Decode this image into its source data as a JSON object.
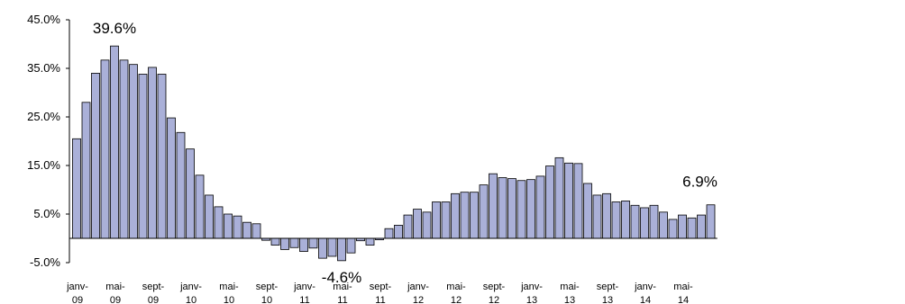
{
  "chart_data": {
    "type": "bar",
    "title": "",
    "xlabel": "",
    "ylabel": "",
    "ylim": [
      -5.0,
      45.0
    ],
    "y_ticks": [
      "45.0%",
      "35.0%",
      "25.0%",
      "15.0%",
      "5.0%",
      "-5.0%"
    ],
    "y_tick_values": [
      45,
      35,
      25,
      15,
      5,
      -5
    ],
    "bar_color": "#aab0d8",
    "bar_edge_color": "#000000",
    "grid": false,
    "x_tick_labels": [
      {
        "index": 0,
        "line1": "janv-",
        "line2": "09"
      },
      {
        "index": 4,
        "line1": "mai-",
        "line2": "09"
      },
      {
        "index": 8,
        "line1": "sept-",
        "line2": "09"
      },
      {
        "index": 12,
        "line1": "janv-",
        "line2": "10"
      },
      {
        "index": 16,
        "line1": "mai-",
        "line2": "10"
      },
      {
        "index": 20,
        "line1": "sept-",
        "line2": "10"
      },
      {
        "index": 24,
        "line1": "janv-",
        "line2": "11"
      },
      {
        "index": 28,
        "line1": "mai-",
        "line2": "11"
      },
      {
        "index": 32,
        "line1": "sept-",
        "line2": "11"
      },
      {
        "index": 36,
        "line1": "janv-",
        "line2": "12"
      },
      {
        "index": 40,
        "line1": "mai-",
        "line2": "12"
      },
      {
        "index": 44,
        "line1": "sept-",
        "line2": "12"
      },
      {
        "index": 48,
        "line1": "janv-",
        "line2": "13"
      },
      {
        "index": 52,
        "line1": "mai-",
        "line2": "13"
      },
      {
        "index": 56,
        "line1": "sept-",
        "line2": "13"
      },
      {
        "index": 60,
        "line1": "janv-",
        "line2": "14"
      },
      {
        "index": 64,
        "line1": "mai-",
        "line2": "14"
      }
    ],
    "values": [
      20.5,
      28.0,
      34.0,
      36.7,
      39.6,
      36.7,
      35.8,
      33.8,
      35.2,
      33.8,
      24.8,
      21.8,
      18.4,
      13.0,
      8.9,
      6.5,
      5.0,
      4.6,
      3.3,
      3.0,
      -0.4,
      -1.4,
      -2.3,
      -1.9,
      -2.7,
      -2.0,
      -4.1,
      -3.7,
      -4.6,
      -3.0,
      -0.5,
      -1.4,
      -0.3,
      2.0,
      2.7,
      4.8,
      6.0,
      5.4,
      7.5,
      7.5,
      9.2,
      9.5,
      9.5,
      11.0,
      13.3,
      12.5,
      12.3,
      11.9,
      12.1,
      12.8,
      14.9,
      16.6,
      15.5,
      15.4,
      11.3,
      8.9,
      9.2,
      7.5,
      7.7,
      6.8,
      6.3,
      6.8,
      5.4,
      3.9,
      4.8,
      4.2,
      4.8,
      6.9
    ],
    "annotations": [
      {
        "label": "39.6%",
        "index": 4
      },
      {
        "label": "-4.6%",
        "index": 28
      },
      {
        "label": "6.9%",
        "index": 67
      }
    ]
  }
}
